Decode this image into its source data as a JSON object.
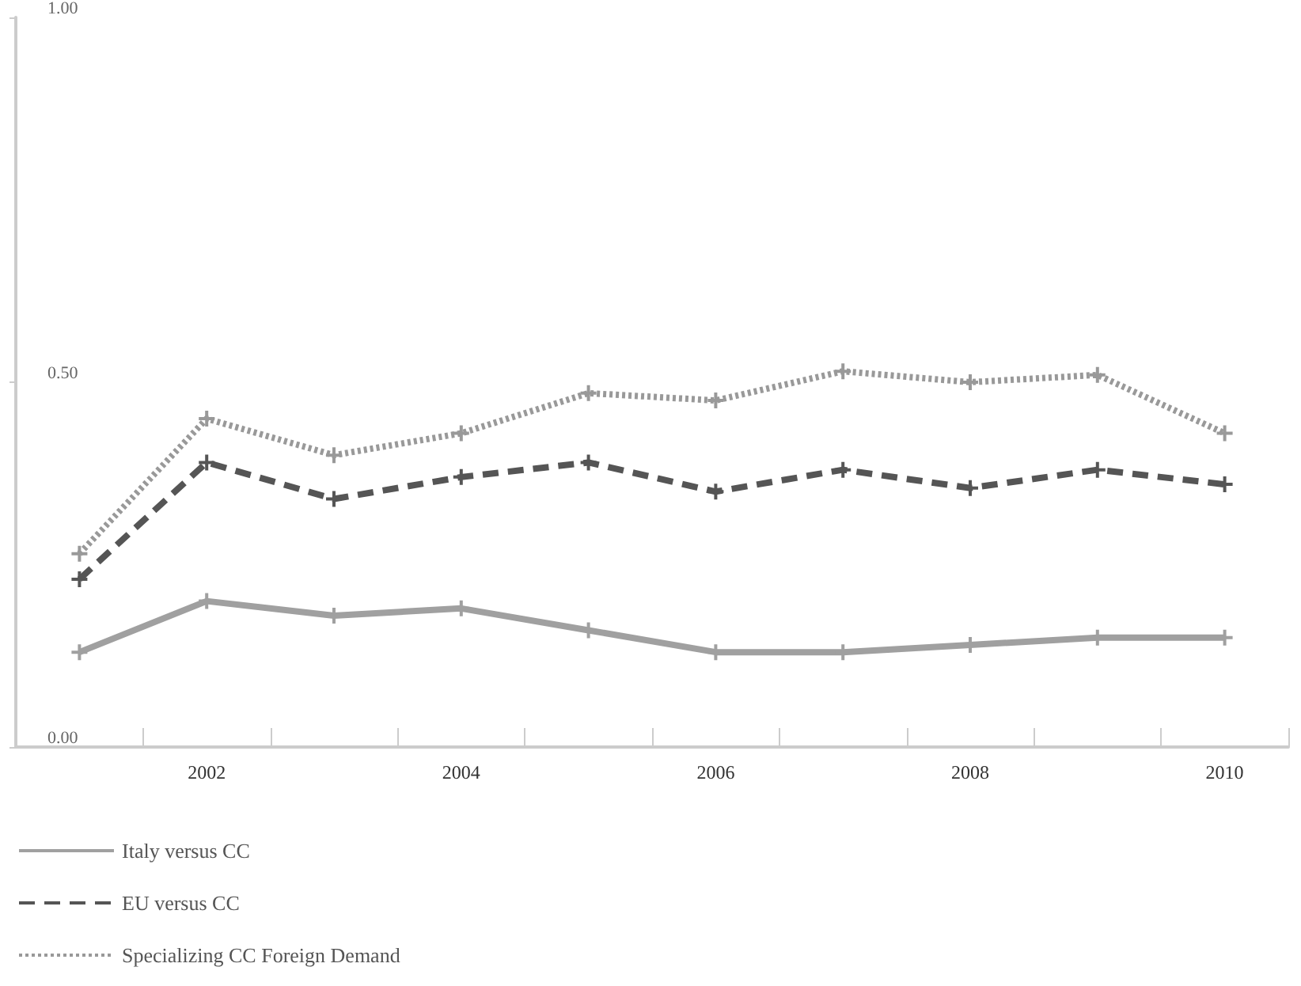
{
  "chart_data": {
    "type": "line",
    "categories": [
      null,
      "2002",
      null,
      "2004",
      null,
      "2006",
      null,
      "2008",
      null,
      "2010"
    ],
    "series": [
      {
        "name": "Italy versus CC",
        "color": "#a0a0a0",
        "line_style": "solid",
        "values": [
          0.13,
          0.2,
          0.18,
          0.19,
          0.16,
          0.13,
          0.13,
          0.14,
          0.15,
          0.15
        ]
      },
      {
        "name": "EU versus CC",
        "color": "#555555",
        "line_style": "dashed",
        "values": [
          0.23,
          0.39,
          0.34,
          0.37,
          0.39,
          0.35,
          0.38,
          0.355,
          0.38,
          0.36
        ]
      },
      {
        "name": "Specializing CC Foreign Demand",
        "color": "#999999",
        "line_style": "dotted",
        "values": [
          0.265,
          0.45,
          0.4,
          0.43,
          0.485,
          0.475,
          0.515,
          0.5,
          0.51,
          0.43
        ]
      }
    ],
    "ylim": [
      0,
      1
    ],
    "yticks": [
      {
        "value": 0,
        "label": "0.00"
      },
      {
        "value": 0.5,
        "label": "0.50"
      },
      {
        "value": 1,
        "label": "1.00"
      }
    ],
    "grid": false,
    "legend": "bottom left",
    "marker": "cross"
  }
}
